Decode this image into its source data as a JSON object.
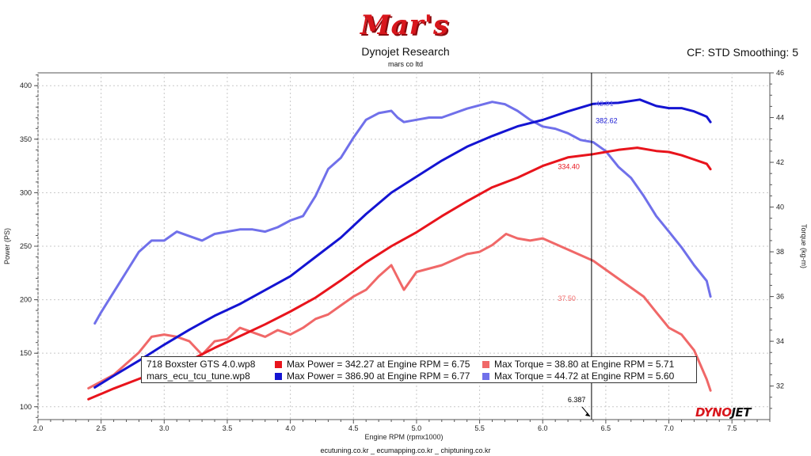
{
  "header": {
    "logo_text": "Mar's",
    "title": "Dynojet Research",
    "subtitle": "mars co ltd",
    "cf_text": "CF: STD Smoothing: 5",
    "brand_a": "DYNO",
    "brand_b": "JET"
  },
  "footer": {
    "text": "ecutuning.co.kr _ ecumapping.co.kr _ chiptuning.co.kr"
  },
  "colors": {
    "red": "#e8141c",
    "blue": "#1414d2",
    "light_red": "#f06868",
    "light_blue": "#7070ea"
  },
  "legend": {
    "rows": [
      {
        "name": "718 Boxster GTS 4.0.wp8",
        "power": "Max Power = 342.27 at Engine RPM = 6.75",
        "torque": "Max Torque = 38.80 at Engine RPM = 5.71"
      },
      {
        "name": "mars_ecu_tcu_tune.wp8",
        "power": "Max Power = 386.90 at Engine RPM = 6.77",
        "torque": "Max Torque = 44.72 at Engine RPM = 5.60"
      }
    ]
  },
  "chart_data": {
    "type": "line",
    "xlabel": "Engine RPM (rpmx1000)",
    "ylabel": "Power (PS)",
    "y2label": "Torque (kg-m)",
    "xlim": [
      2.0,
      7.8
    ],
    "ylim": [
      88,
      412
    ],
    "y2lim": [
      30.5,
      46
    ],
    "x_ticks": [
      2.0,
      2.5,
      3.0,
      3.5,
      4.0,
      4.5,
      5.0,
      5.5,
      6.0,
      6.5,
      7.0,
      7.5
    ],
    "y_ticks": [
      100,
      150,
      200,
      250,
      300,
      350,
      400
    ],
    "y2_ticks": [
      32,
      34,
      36,
      38,
      40,
      42,
      44,
      46
    ],
    "cursor_x": 6.387,
    "cursor_label": "6.387",
    "annotations": [
      {
        "text": "42.91",
        "x": 6.42,
        "y": 381,
        "color": "#7070ea"
      },
      {
        "text": "382.62",
        "x": 6.42,
        "y": 365,
        "color": "#1414d2"
      },
      {
        "text": "334.40",
        "x": 6.12,
        "y": 322,
        "color": "#e8141c"
      },
      {
        "text": "37.50",
        "x": 6.12,
        "y": 199,
        "color": "#f06868"
      }
    ],
    "series": [
      {
        "name": "718 Boxster GTS 4.0.wp8 Power",
        "axis": "left",
        "color": "#e8141c",
        "x": [
          2.4,
          2.6,
          2.8,
          3.0,
          3.2,
          3.4,
          3.6,
          3.8,
          4.0,
          4.2,
          4.4,
          4.6,
          4.8,
          5.0,
          5.2,
          5.4,
          5.6,
          5.8,
          6.0,
          6.2,
          6.4,
          6.6,
          6.75,
          6.9,
          7.0,
          7.1,
          7.2,
          7.3,
          7.33
        ],
        "y": [
          107,
          117,
          126,
          134,
          143,
          155,
          166,
          177,
          189,
          202,
          218,
          235,
          250,
          263,
          278,
          292,
          305,
          314,
          325,
          333,
          336,
          340,
          342,
          339,
          338,
          335,
          331,
          327,
          322
        ]
      },
      {
        "name": "mars_ecu_tcu_tune.wp8 Power",
        "axis": "left",
        "color": "#1414d2",
        "x": [
          2.45,
          2.6,
          2.8,
          3.0,
          3.2,
          3.4,
          3.6,
          3.8,
          4.0,
          4.2,
          4.4,
          4.6,
          4.8,
          5.0,
          5.2,
          5.4,
          5.6,
          5.8,
          6.0,
          6.2,
          6.4,
          6.6,
          6.77,
          6.9,
          7.0,
          7.1,
          7.2,
          7.3,
          7.33
        ],
        "y": [
          118,
          129,
          143,
          158,
          172,
          185,
          196,
          209,
          222,
          240,
          258,
          280,
          300,
          315,
          330,
          343,
          353,
          362,
          368,
          376,
          383,
          384,
          387,
          381,
          379,
          379,
          376,
          371,
          366
        ]
      },
      {
        "name": "718 Boxster GTS 4.0.wp8 Torque",
        "axis": "right",
        "color": "#f06868",
        "x": [
          2.4,
          2.6,
          2.8,
          2.9,
          3.0,
          3.1,
          3.2,
          3.3,
          3.4,
          3.5,
          3.6,
          3.8,
          3.9,
          4.0,
          4.1,
          4.2,
          4.3,
          4.4,
          4.5,
          4.6,
          4.7,
          4.8,
          4.9,
          5.0,
          5.2,
          5.4,
          5.5,
          5.6,
          5.71,
          5.8,
          5.9,
          6.0,
          6.2,
          6.4,
          6.6,
          6.8,
          6.9,
          7.0,
          7.1,
          7.2,
          7.3,
          7.33
        ],
        "y": [
          31.9,
          32.5,
          33.5,
          34.2,
          34.3,
          34.2,
          34.0,
          33.4,
          34.0,
          34.1,
          34.6,
          34.2,
          34.5,
          34.3,
          34.6,
          35.0,
          35.2,
          35.6,
          36.0,
          36.3,
          36.9,
          37.4,
          36.3,
          37.1,
          37.4,
          37.9,
          38.0,
          38.3,
          38.8,
          38.6,
          38.5,
          38.6,
          38.1,
          37.6,
          36.8,
          36.0,
          35.3,
          34.6,
          34.3,
          33.6,
          32.3,
          31.8
        ]
      },
      {
        "name": "mars_ecu_tcu_tune.wp8 Torque",
        "axis": "right",
        "color": "#7070ea",
        "x": [
          2.45,
          2.5,
          2.6,
          2.7,
          2.8,
          2.9,
          3.0,
          3.1,
          3.2,
          3.3,
          3.4,
          3.5,
          3.6,
          3.7,
          3.8,
          3.9,
          4.0,
          4.1,
          4.2,
          4.3,
          4.4,
          4.5,
          4.6,
          4.7,
          4.8,
          4.85,
          4.9,
          5.0,
          5.1,
          5.2,
          5.4,
          5.6,
          5.7,
          5.8,
          5.9,
          6.0,
          6.1,
          6.2,
          6.3,
          6.4,
          6.5,
          6.6,
          6.7,
          6.8,
          6.9,
          7.0,
          7.1,
          7.2,
          7.3,
          7.33
        ],
        "y": [
          34.8,
          35.3,
          36.2,
          37.1,
          38.0,
          38.5,
          38.5,
          38.9,
          38.7,
          38.5,
          38.8,
          38.9,
          39.0,
          39.0,
          38.9,
          39.1,
          39.4,
          39.6,
          40.5,
          41.7,
          42.2,
          43.1,
          43.9,
          44.2,
          44.3,
          44.0,
          43.8,
          43.9,
          44.0,
          44.0,
          44.4,
          44.7,
          44.6,
          44.3,
          43.9,
          43.6,
          43.5,
          43.3,
          43.0,
          42.9,
          42.5,
          41.8,
          41.3,
          40.5,
          39.6,
          38.9,
          38.2,
          37.4,
          36.7,
          36.0
        ]
      }
    ]
  }
}
